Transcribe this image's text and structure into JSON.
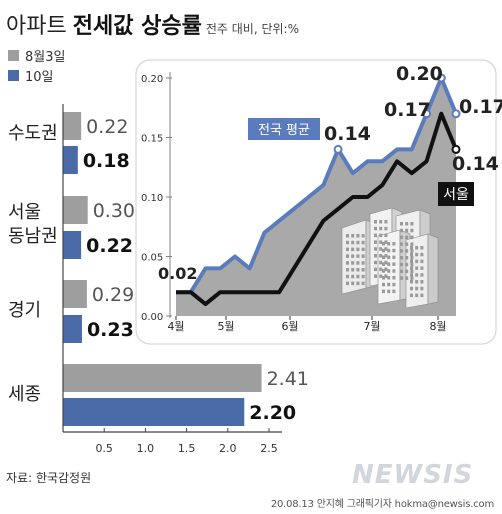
{
  "header": {
    "title_light": "아파트",
    "title_bold": "전세값 상승률",
    "subtitle": "전주 대비, 단위:%"
  },
  "legend": [
    {
      "label": "8월3일",
      "color": "#9e9e9e"
    },
    {
      "label": "10일",
      "color": "#4a6ba8"
    }
  ],
  "footer": {
    "source": "자료: 한국감정원",
    "credit": "20.08.13 안지혜 그래픽기자 hokma@newsis.com",
    "watermark": "NEWSIS"
  },
  "chart_data": [
    {
      "type": "bar",
      "orientation": "horizontal",
      "categories": [
        "수도권",
        "서울 동남권",
        "경기",
        "세종"
      ],
      "series": [
        {
          "name": "8월3일",
          "values": [
            0.22,
            0.3,
            0.29,
            2.41
          ],
          "color": "#9e9e9e"
        },
        {
          "name": "10일",
          "values": [
            0.18,
            0.22,
            0.23,
            2.2
          ],
          "color": "#4a6ba8"
        }
      ],
      "value_labels": [
        [
          "0.22",
          "0.30",
          "0.29",
          "2.41"
        ],
        [
          "0.18",
          "0.22",
          "0.23",
          "2.20"
        ]
      ],
      "xlim": [
        0,
        2.5
      ],
      "xticks": [
        "0.5",
        "1.0",
        "1.5",
        "2.0",
        "2.5"
      ]
    },
    {
      "type": "line",
      "x_labels": [
        "4월",
        "5월",
        "6월",
        "7월",
        "8월"
      ],
      "ylim": [
        0,
        0.2
      ],
      "yticks": [
        "0.00",
        "0.05",
        "0.10",
        "0.15",
        "0.20"
      ],
      "series": [
        {
          "name": "전국 평균",
          "color": "#5b7bbf",
          "area_fill": "#a9a9a9",
          "values": [
            0.02,
            0.02,
            0.04,
            0.04,
            0.05,
            0.04,
            0.07,
            0.08,
            0.09,
            0.1,
            0.11,
            0.14,
            0.12,
            0.13,
            0.13,
            0.14,
            0.14,
            0.17,
            0.2,
            0.17
          ]
        },
        {
          "name": "서울",
          "color": "#111111",
          "values": [
            0.02,
            0.02,
            0.01,
            0.02,
            0.02,
            0.02,
            0.02,
            0.02,
            0.04,
            0.06,
            0.08,
            0.09,
            0.1,
            0.1,
            0.11,
            0.13,
            0.12,
            0.13,
            0.17,
            0.14
          ]
        }
      ],
      "annotations": [
        "0.02",
        "0.14",
        "0.17",
        "0.20",
        "0.17",
        "0.14"
      ]
    }
  ]
}
